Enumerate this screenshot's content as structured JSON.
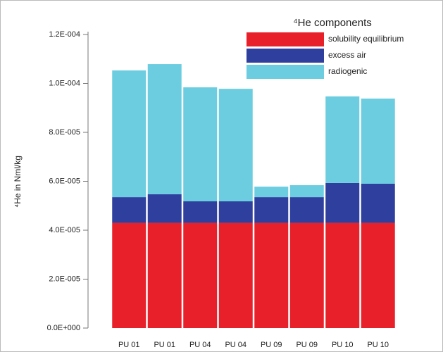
{
  "chart_data": {
    "type": "stacked-bar",
    "ylabel": "⁴He in Nml/kg",
    "legend_title": "⁴He components",
    "categories": [
      "PU 01",
      "PU 01",
      "PU 04",
      "PU 04",
      "PU 09",
      "PU 09",
      "PU 10",
      "PU 10"
    ],
    "series": [
      {
        "name": "solubility equilibrium",
        "color": "#e8202a",
        "values": [
          4.3e-05,
          4.3e-05,
          4.3e-05,
          4.3e-05,
          4.3e-05,
          4.3e-05,
          4.3e-05,
          4.3e-05
        ]
      },
      {
        "name": "excess air",
        "color": "#2e3f9e",
        "values": [
          1.05e-05,
          1.17e-05,
          8.8e-06,
          8.8e-06,
          1.05e-05,
          1.05e-05,
          1.63e-05,
          1.6e-05
        ]
      },
      {
        "name": "radiogenic",
        "color": "#6ccde0",
        "values": [
          5.18e-05,
          5.32e-05,
          4.66e-05,
          4.6e-05,
          4.3e-06,
          4.9e-06,
          3.54e-05,
          3.48e-05
        ]
      }
    ],
    "ylim": [
      0,
      0.00012
    ],
    "yticks": [
      {
        "value": 0,
        "label": "0.0E+000"
      },
      {
        "value": 2e-05,
        "label": "2.0E-005"
      },
      {
        "value": 4e-05,
        "label": "4.0E-005"
      },
      {
        "value": 6e-05,
        "label": "6.0E-005"
      },
      {
        "value": 8e-05,
        "label": "8.0E-005"
      },
      {
        "value": 0.0001,
        "label": "1.0E-004"
      },
      {
        "value": 0.00012,
        "label": "1.2E-004"
      }
    ]
  }
}
